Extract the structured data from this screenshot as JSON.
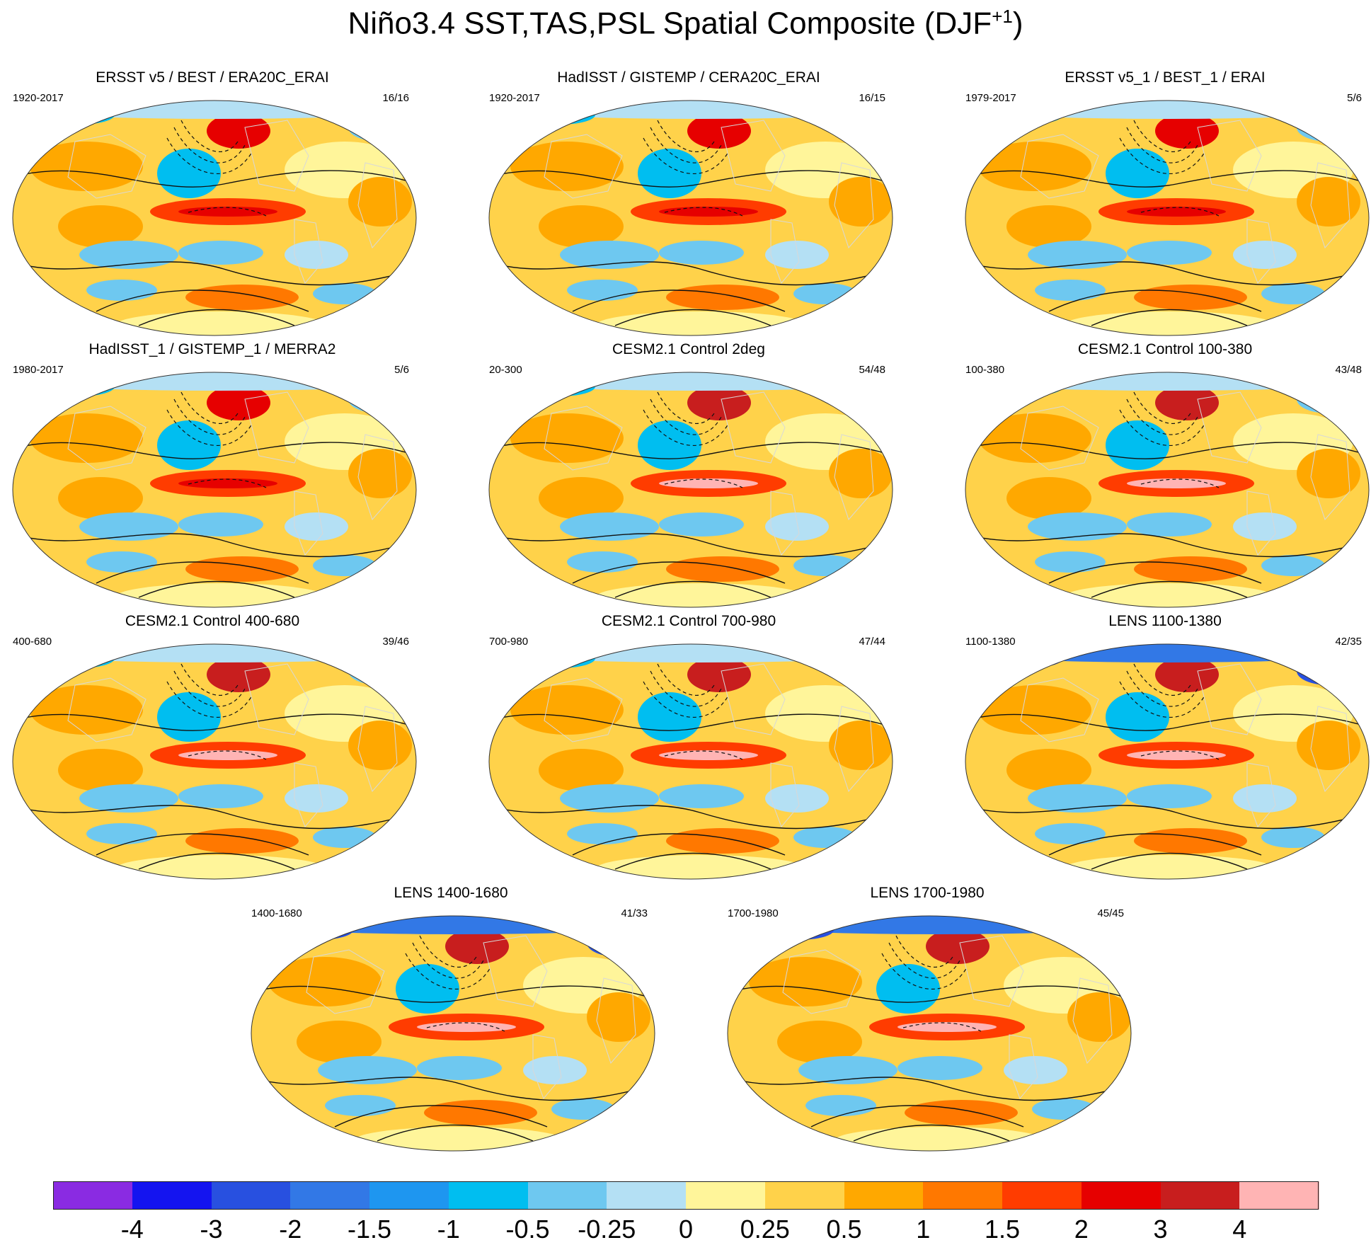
{
  "title": {
    "main": "Niño3.4 SST,TAS,PSL Spatial Composite (DJF",
    "sup": "+1",
    "close": ")"
  },
  "panels": [
    {
      "title": "ERSST v5 / BEST / ERA20C_ERAI",
      "years": "1920-2017",
      "count": "16/16",
      "variant": 1
    },
    {
      "title": "HadISST / GISTEMP / CERA20C_ERAI",
      "years": "1920-2017",
      "count": "16/15",
      "variant": 2
    },
    {
      "title": "ERSST v5_1 / BEST_1 / ERAI",
      "years": "1979-2017",
      "count": "5/6",
      "variant": 3
    },
    {
      "title": "HadISST_1 / GISTEMP_1 / MERRA2",
      "years": "1980-2017",
      "count": "5/6",
      "variant": 4
    },
    {
      "title": "CESM2.1 Control 2deg",
      "years": "20-300",
      "count": "54/48",
      "variant": 5
    },
    {
      "title": "CESM2.1 Control 100-380",
      "years": "100-380",
      "count": "43/48",
      "variant": 6
    },
    {
      "title": "CESM2.1 Control 400-680",
      "years": "400-680",
      "count": "39/46",
      "variant": 7
    },
    {
      "title": "CESM2.1 Control 700-980",
      "years": "700-980",
      "count": "47/44",
      "variant": 8
    },
    {
      "title": "LENS 1100-1380",
      "years": "1100-1380",
      "count": "42/35",
      "variant": 9
    },
    {
      "title": "LENS 1400-1680",
      "years": "1400-1680",
      "count": "41/33",
      "variant": 10
    },
    {
      "title": "LENS 1700-1980",
      "years": "1700-1980",
      "count": "45/45",
      "variant": 11
    }
  ],
  "colorbar": {
    "colors": [
      "#8a2be2",
      "#1414f0",
      "#2850e0",
      "#3278e6",
      "#1e96f0",
      "#00bef0",
      "#6ec8f0",
      "#b4e0f4",
      "#fff59a",
      "#ffd24a",
      "#ffa800",
      "#ff7800",
      "#ff3c00",
      "#e60000",
      "#c81e1e",
      "#ffb4b4"
    ],
    "ticks": [
      "-4",
      "-3",
      "-2",
      "-1.5",
      "-1",
      "-0.5",
      "-0.25",
      "0",
      "0.25",
      "0.5",
      "1",
      "1.5",
      "2",
      "3",
      "4"
    ]
  }
}
